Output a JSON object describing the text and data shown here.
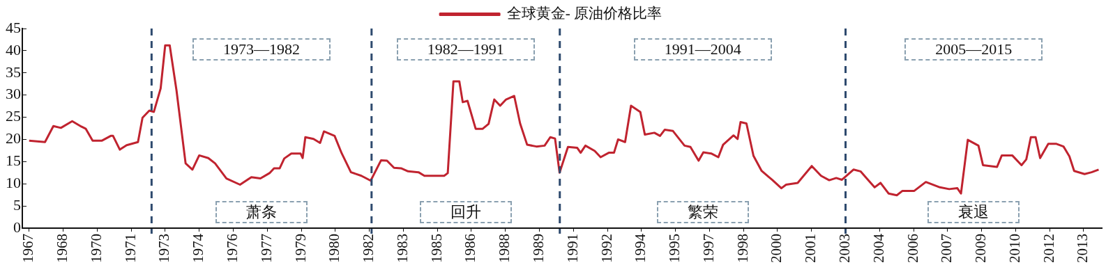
{
  "chart_data": {
    "type": "line",
    "x": [
      1967,
      1967.7,
      1968.07,
      1968.4,
      1968.9,
      1969.3,
      1969.5,
      1969.8,
      1970.2,
      1970.6,
      1970.7,
      1971.0,
      1971.3,
      1971.8,
      1972.0,
      1972.3,
      1972.5,
      1972.8,
      1973.0,
      1973.2,
      1973.5,
      1973.9,
      1974.2,
      1974.5,
      1974.9,
      1975.2,
      1975.7,
      1976.3,
      1976.8,
      1977.2,
      1977.6,
      1977.8,
      1978.05,
      1978.25,
      1978.56,
      1978.97,
      1979.06,
      1979.18,
      1979.54,
      1979.83,
      1980.0,
      1980.47,
      1980.78,
      1981.19,
      1981.65,
      1982.06,
      1982.52,
      1982.78,
      1983.09,
      1983.4,
      1983.71,
      1984.17,
      1984.43,
      1985.3,
      1985.46,
      1985.71,
      1985.97,
      1986.12,
      1986.33,
      1986.69,
      1987.0,
      1987.26,
      1987.51,
      1987.77,
      1988.03,
      1988.39,
      1988.65,
      1988.96,
      1989.37,
      1989.73,
      1989.98,
      1990.19,
      1990.39,
      1990.76,
      1991.17,
      1991.32,
      1991.53,
      1991.94,
      1992.2,
      1992.56,
      1992.79,
      1992.97,
      1993.28,
      1993.54,
      1993.95,
      1994.15,
      1994.57,
      1994.82,
      1995.03,
      1995.39,
      1995.9,
      1996.16,
      1996.52,
      1996.73,
      1997.09,
      1997.39,
      1997.6,
      1998.06,
      1998.24,
      1998.37,
      1998.63,
      1998.94,
      1999.3,
      1999.76,
      2000.17,
      2000.38,
      2000.89,
      2001.51,
      2001.92,
      2002.28,
      2002.59,
      2002.84,
      2003.35,
      2003.66,
      2004.28,
      2004.54,
      2004.9,
      2005.26,
      2005.51,
      2006.03,
      2006.54,
      2007.16,
      2007.57,
      2007.93,
      2008.09,
      2008.39,
      2008.86,
      2009.06,
      2009.68,
      2009.89,
      2010.35,
      2010.76,
      2010.97,
      2011.17,
      2011.38,
      2011.58,
      2011.94,
      2012.3,
      2012.61,
      2012.87,
      2013.08,
      2013.54,
      2013.85,
      2014.16
    ],
    "series": [
      {
        "name": "全球黄金- 原油价格比率",
        "color": "#c0232f",
        "values": [
          19.7,
          19.4,
          23.0,
          22.6,
          24.1,
          22.9,
          22.4,
          19.7,
          19.7,
          20.8,
          20.8,
          17.7,
          18.7,
          19.4,
          24.9,
          26.5,
          26.2,
          31.5,
          41.2,
          41.2,
          31.0,
          14.6,
          13.2,
          16.4,
          15.8,
          14.6,
          11.2,
          9.8,
          11.5,
          11.2,
          12.4,
          13.5,
          13.5,
          15.7,
          16.8,
          16.8,
          15.8,
          20.5,
          20.1,
          19.2,
          21.8,
          20.8,
          16.9,
          12.6,
          11.8,
          10.7,
          15.3,
          15.2,
          13.6,
          13.5,
          12.8,
          12.6,
          11.8,
          11.8,
          12.4,
          33.1,
          33.1,
          28.4,
          28.7,
          22.4,
          22.4,
          23.5,
          29.0,
          27.6,
          29.0,
          29.8,
          23.6,
          18.8,
          18.4,
          18.6,
          20.5,
          20.2,
          12.5,
          18.3,
          18.1,
          17.0,
          18.6,
          17.4,
          16.0,
          17.0,
          17.0,
          20.0,
          19.4,
          27.6,
          26.2,
          21.1,
          21.5,
          20.8,
          22.2,
          21.9,
          18.6,
          18.3,
          15.2,
          17.1,
          16.8,
          16.0,
          18.8,
          20.9,
          20.1,
          23.9,
          23.6,
          16.3,
          12.9,
          10.9,
          9.0,
          9.8,
          10.2,
          14.0,
          11.8,
          10.8,
          11.3,
          10.9,
          13.2,
          12.8,
          9.2,
          10.2,
          7.8,
          7.4,
          8.4,
          8.4,
          10.4,
          9.2,
          8.8,
          9.0,
          7.8,
          19.9,
          18.6,
          14.2,
          13.8,
          16.4,
          16.4,
          14.2,
          15.5,
          20.5,
          20.5,
          15.8,
          19.0,
          19.0,
          18.4,
          16.2,
          12.9,
          12.2,
          12.6,
          13.2
        ]
      }
    ],
    "xlim": [
      1966.7,
      2014.3
    ],
    "xticks": [
      1967,
      {
        "value": 1968.5,
        "label": "1968"
      },
      1970,
      {
        "value": 1971.5,
        "label": "1971"
      },
      1973,
      {
        "value": 1974.5,
        "label": "1974"
      },
      1976,
      {
        "value": 1977.5,
        "label": "1977"
      },
      1979,
      {
        "value": 1980.5,
        "label": "1980"
      },
      1982,
      {
        "value": 1983.5,
        "label": "1983"
      },
      1985,
      {
        "value": 1986.5,
        "label": "1986"
      },
      1988,
      {
        "value": 1989.5,
        "label": "1989"
      },
      1991,
      {
        "value": 1992.5,
        "label": "1992"
      },
      1994,
      {
        "value": 1995.5,
        "label": "1995"
      },
      1997,
      {
        "value": 1998.5,
        "label": "1998"
      },
      2000,
      {
        "value": 2001.5,
        "label": "2001"
      },
      2003,
      {
        "value": 2004.5,
        "label": "2004"
      },
      2006,
      {
        "value": 2007.5,
        "label": "2007"
      },
      2009,
      {
        "value": 2010.5,
        "label": "2010"
      },
      2012,
      {
        "value": 2013.5,
        "label": "2013"
      }
    ],
    "ylim": [
      0,
      45
    ],
    "yticks": [
      0,
      5,
      10,
      15,
      20,
      25,
      30,
      35,
      40,
      45
    ],
    "grid": false,
    "legend": "top",
    "marker": "none",
    "line_style": "solid",
    "ref_lines": [
      {
        "axis": "x",
        "value": 1972.4,
        "color": "#2e4a6e",
        "line_style": "dashed"
      },
      {
        "axis": "x",
        "value": 1982.1,
        "color": "#2e4a6e",
        "line_style": "dashed"
      },
      {
        "axis": "x",
        "value": 1990.4,
        "color": "#2e4a6e",
        "line_style": "dashed"
      },
      {
        "axis": "x",
        "value": 2003.0,
        "color": "#2e4a6e",
        "line_style": "dashed"
      }
    ],
    "annotations": [
      "1973—1982",
      "1982—1991",
      "1991—2004",
      "2005—2015",
      "萧条",
      "回升",
      "繁荣",
      "衰退"
    ]
  }
}
